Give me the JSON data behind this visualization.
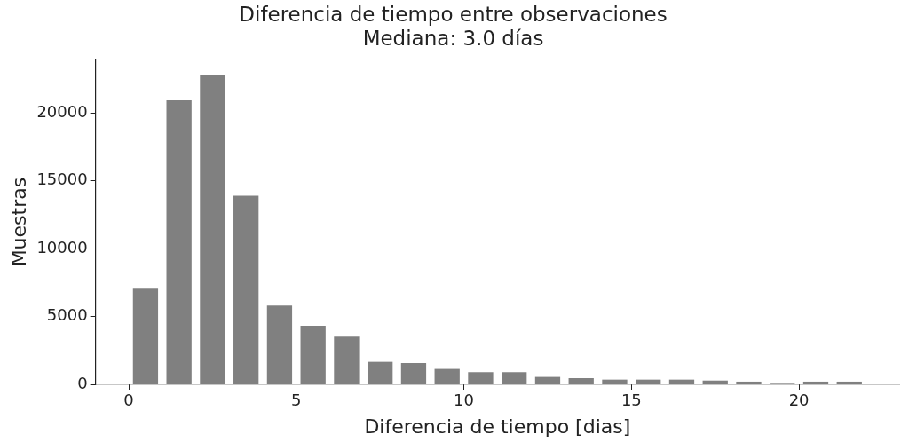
{
  "chart_data": {
    "type": "histogram",
    "title": "Diferencia de tiempo entre observaciones\nMediana: 3.0 días",
    "xlabel": "Diferencia de tiempo [dias]",
    "ylabel": "Muestras",
    "bins": [
      0,
      1,
      2,
      3,
      4,
      5,
      6,
      7,
      8,
      9,
      10,
      11,
      12,
      13,
      14,
      15,
      16,
      17,
      18,
      19,
      20,
      21,
      22
    ],
    "values": [
      7120,
      20940,
      22800,
      13900,
      5810,
      4320,
      3510,
      1660,
      1570,
      1140,
      900,
      900,
      550,
      460,
      350,
      350,
      350,
      280,
      200,
      110,
      200,
      200
    ],
    "color": "#808080",
    "xlim": [
      -0.99,
      22.99
    ],
    "xticks": [
      0,
      5,
      10,
      15,
      20
    ],
    "ylim": [
      0,
      23940
    ],
    "yticks": [
      0,
      5000,
      10000,
      15000,
      20000
    ],
    "grid": false,
    "legend": false
  }
}
